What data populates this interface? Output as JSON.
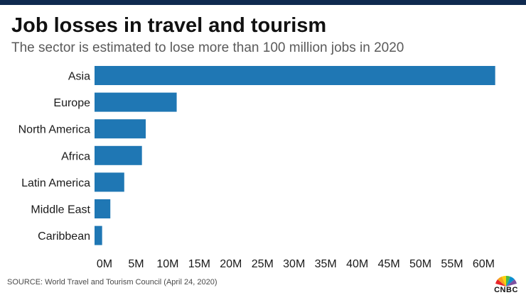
{
  "header": {
    "title": "Job losses in travel and tourism",
    "subtitle": "The sector is estimated to lose more than 100 million jobs in 2020"
  },
  "footer": {
    "source": "SOURCE: World Travel and Tourism Council (April 24, 2020)",
    "logo_text": "CNBC"
  },
  "colors": {
    "bar": "#1f77b4",
    "top_bar": "#0f2a4f"
  },
  "chart_data": {
    "type": "bar",
    "orientation": "horizontal",
    "title": "Job losses in travel and tourism",
    "subtitle": "The sector is estimated to lose more than 100 million jobs in 2020",
    "categories": [
      "Asia",
      "Europe",
      "North America",
      "Africa",
      "Latin America",
      "Middle East",
      "Caribbean"
    ],
    "values": [
      63.4,
      13.0,
      8.1,
      7.5,
      4.7,
      2.5,
      1.2
    ],
    "unit": "M",
    "xlim": [
      0,
      64
    ],
    "xticks": [
      0,
      5,
      10,
      15,
      20,
      25,
      30,
      35,
      40,
      45,
      50,
      55,
      60
    ],
    "xtick_labels": [
      "0M",
      "5M",
      "10M",
      "15M",
      "20M",
      "25M",
      "30M",
      "35M",
      "40M",
      "45M",
      "50M",
      "55M",
      "60M"
    ],
    "xlabel": "",
    "ylabel": "",
    "grid": false,
    "legend": "none"
  }
}
